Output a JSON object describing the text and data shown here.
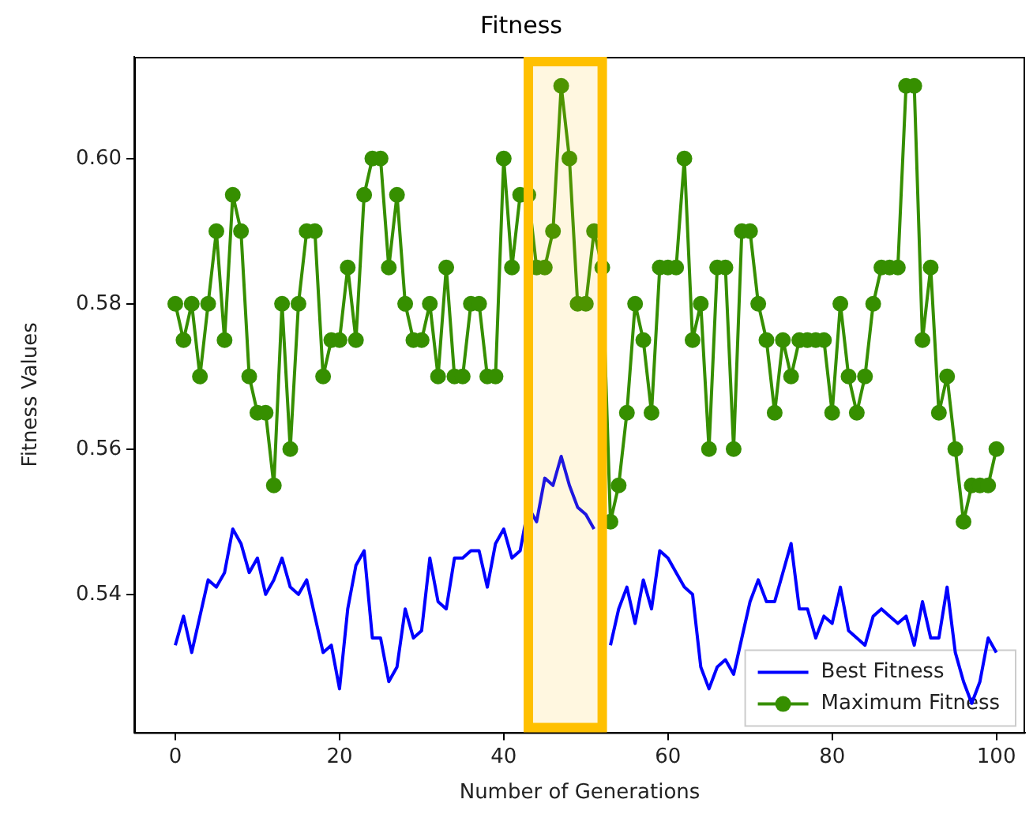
{
  "chart_data": {
    "type": "line",
    "title": "Fitness",
    "xlabel": "Number of Generations",
    "ylabel": "Fitness Values",
    "x": [
      0,
      1,
      2,
      3,
      4,
      5,
      6,
      7,
      8,
      9,
      10,
      11,
      12,
      13,
      14,
      15,
      16,
      17,
      18,
      19,
      20,
      21,
      22,
      23,
      24,
      25,
      26,
      27,
      28,
      29,
      30,
      31,
      32,
      33,
      34,
      35,
      36,
      37,
      38,
      39,
      40,
      41,
      42,
      43,
      44,
      45,
      46,
      47,
      48,
      49,
      50,
      51,
      52,
      53,
      54,
      55,
      56,
      57,
      58,
      59,
      60,
      61,
      62,
      63,
      64,
      65,
      66,
      67,
      68,
      69,
      70,
      71,
      72,
      73,
      74,
      75,
      76,
      77,
      78,
      79,
      80,
      81,
      82,
      83,
      84,
      85,
      86,
      87,
      88,
      89,
      90,
      91,
      92,
      93,
      94,
      95,
      96,
      97,
      98,
      99,
      100
    ],
    "series": [
      {
        "name": "Best Fitness",
        "color": "#0000ff",
        "marker": "none",
        "values": [
          0.533,
          0.537,
          0.532,
          0.537,
          0.542,
          0.541,
          0.543,
          0.549,
          0.547,
          0.543,
          0.545,
          0.54,
          0.542,
          0.545,
          0.541,
          0.54,
          0.542,
          0.537,
          0.532,
          0.533,
          0.527,
          0.538,
          0.544,
          0.546,
          0.534,
          0.534,
          0.528,
          0.53,
          0.538,
          0.534,
          0.535,
          0.545,
          0.539,
          0.538,
          0.545,
          0.545,
          0.546,
          0.546,
          0.541,
          0.547,
          0.549,
          0.545,
          0.546,
          0.552,
          0.55,
          0.556,
          0.555,
          0.559,
          0.555,
          0.552,
          0.551,
          0.549,
          null,
          0.533,
          0.538,
          0.541,
          0.536,
          0.542,
          0.538,
          0.546,
          0.545,
          0.543,
          0.541,
          0.54,
          0.53,
          0.527,
          0.53,
          0.531,
          0.529,
          0.534,
          0.539,
          0.542,
          0.539,
          0.539,
          0.543,
          0.547,
          0.538,
          0.538,
          0.534,
          0.537,
          0.536,
          0.541,
          0.535,
          0.534,
          0.533,
          0.537,
          0.538,
          0.537,
          0.536,
          0.537,
          0.533,
          0.539,
          0.534,
          0.534,
          0.541,
          0.532,
          0.528,
          0.525,
          0.528,
          0.534,
          0.532
        ]
      },
      {
        "name": "Maximum Fitness",
        "color": "#368f00",
        "marker": "circle",
        "values": [
          0.58,
          0.575,
          0.58,
          0.57,
          0.58,
          0.59,
          0.575,
          0.595,
          0.59,
          0.57,
          0.565,
          0.565,
          0.555,
          0.58,
          0.56,
          0.58,
          0.59,
          0.59,
          0.57,
          0.575,
          0.575,
          0.585,
          0.575,
          0.595,
          0.6,
          0.6,
          0.585,
          0.595,
          0.58,
          0.575,
          0.575,
          0.58,
          0.57,
          0.585,
          0.57,
          0.57,
          0.58,
          0.58,
          0.57,
          0.57,
          0.6,
          0.585,
          0.595,
          0.595,
          0.585,
          0.585,
          0.59,
          0.61,
          0.6,
          0.58,
          0.58,
          0.59,
          0.585,
          0.55,
          0.555,
          0.565,
          0.58,
          0.575,
          0.565,
          0.585,
          0.585,
          0.585,
          0.6,
          0.575,
          0.58,
          0.56,
          0.585,
          0.585,
          0.56,
          0.59,
          0.59,
          0.58,
          0.575,
          0.565,
          0.575,
          0.57,
          0.575,
          0.575,
          0.575,
          0.575,
          0.565,
          0.58,
          0.57,
          0.565,
          0.57,
          0.58,
          0.585,
          0.585,
          0.585,
          0.61,
          0.61,
          0.575,
          0.585,
          0.565,
          0.57,
          0.56,
          0.55,
          0.555,
          0.555,
          0.555,
          0.56
        ]
      }
    ],
    "xlim": [
      -5,
      103.5
    ],
    "xticks": [
      0,
      20,
      40,
      60,
      80,
      100
    ],
    "ylim": [
      0.521,
      0.614
    ],
    "yticks": [
      {
        "value": 0.54,
        "label": "0.54"
      },
      {
        "value": 0.56,
        "label": "0.56"
      },
      {
        "value": 0.58,
        "label": "0.58"
      },
      {
        "value": 0.6,
        "label": "0.60"
      }
    ],
    "bands": [
      {
        "axis": "x",
        "from": 43,
        "to": 52,
        "color": "#ffc000"
      }
    ],
    "legend": "bottom right",
    "grid": false
  }
}
